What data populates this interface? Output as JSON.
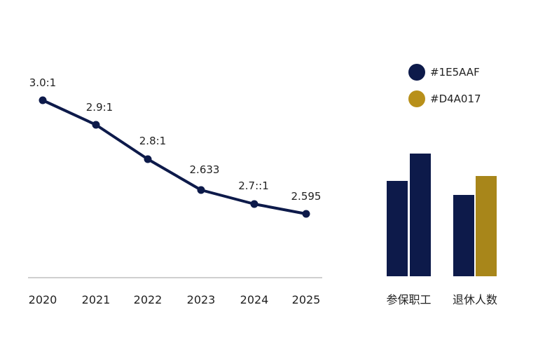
{
  "chart_data": [
    {
      "type": "line",
      "x": [
        "2020",
        "2021",
        "2022",
        "2023",
        "2024",
        "2025"
      ],
      "values": [
        3.0,
        2.9,
        2.8,
        2.633,
        2.7,
        2.595
      ],
      "data_labels": [
        "3.0:1",
        "2.9:1",
        "2.8:1",
        "2.633",
        "2.7::1",
        "2.595"
      ],
      "color": "#0D1A4A"
    },
    {
      "type": "bar",
      "categories": [
        "参保职工",
        "退休人数"
      ],
      "series": [
        {
          "legend": "#1E5AAF",
          "values": [
            70,
            62
          ],
          "color": "#0D1A4A"
        },
        {
          "legend": "#D4A017",
          "values": [
            88,
            74
          ],
          "colors": [
            "#0D1A4A",
            "#A8861A"
          ]
        }
      ],
      "legend_placement": "top",
      "legend_colors": [
        "#0D1A4A",
        "#B8901A"
      ]
    }
  ]
}
